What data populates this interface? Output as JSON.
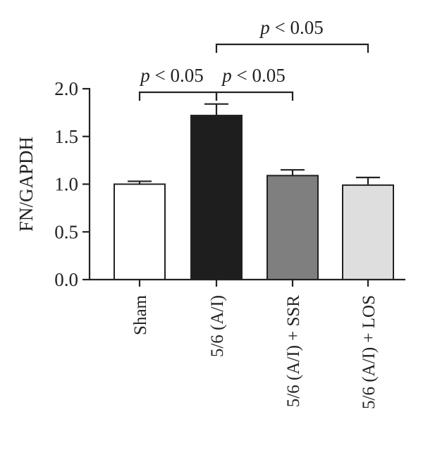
{
  "chart_data": {
    "type": "bar",
    "ylabel": "FN/GAPDH",
    "xlabel": "",
    "ylim": [
      0,
      2.0
    ],
    "yticks": [
      "0.0",
      "0.5",
      "1.0",
      "1.5",
      "2.0"
    ],
    "yticks_values": [
      0,
      0.5,
      1.0,
      1.5,
      2.0
    ],
    "categories": [
      "Sham",
      "5/6 (A/I)",
      "5/6 (A/I) + SSR",
      "5/6 (A/I) + LOS"
    ],
    "values": [
      1.0,
      1.72,
      1.09,
      0.99
    ],
    "errors": [
      0.03,
      0.12,
      0.06,
      0.08
    ],
    "bar_colors": [
      "#ffffff",
      "#1e1e1e",
      "#7f7f7f",
      "#dedede"
    ],
    "significance": [
      {
        "from": 0,
        "to": 1,
        "label_p": "p",
        "label_rest": " < 0.05"
      },
      {
        "from": 1,
        "to": 2,
        "label_p": "p",
        "label_rest": " < 0.05"
      },
      {
        "from": 1,
        "to": 3,
        "label_p": "p",
        "label_rest": " < 0.05"
      }
    ],
    "grid": false,
    "legend": "none"
  }
}
